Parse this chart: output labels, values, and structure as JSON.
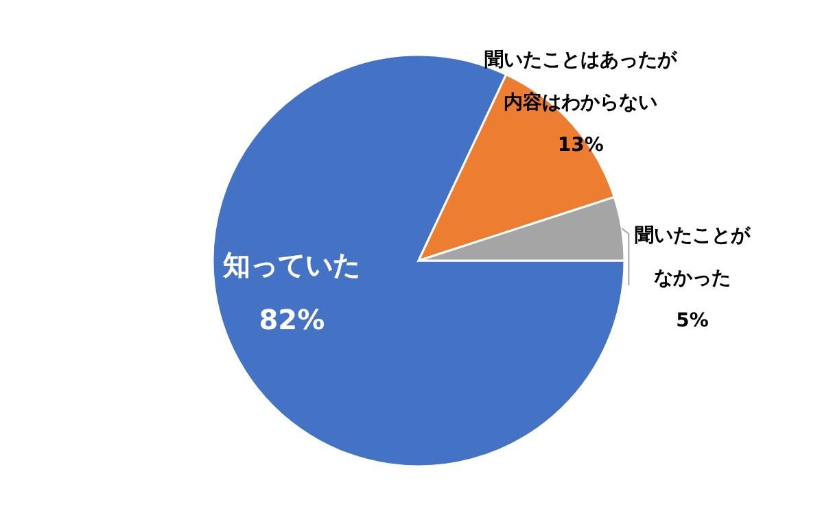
{
  "chart_data": {
    "type": "pie",
    "categories": [
      "知っていた",
      "聞いたことはあったが内容はわからない",
      "聞いたことがなかった"
    ],
    "values": [
      82,
      13,
      5
    ],
    "colors": [
      "#4472c4",
      "#ed7d31",
      "#a5a5a5"
    ],
    "value_labels": [
      "82%",
      "13%",
      "5%"
    ]
  }
}
